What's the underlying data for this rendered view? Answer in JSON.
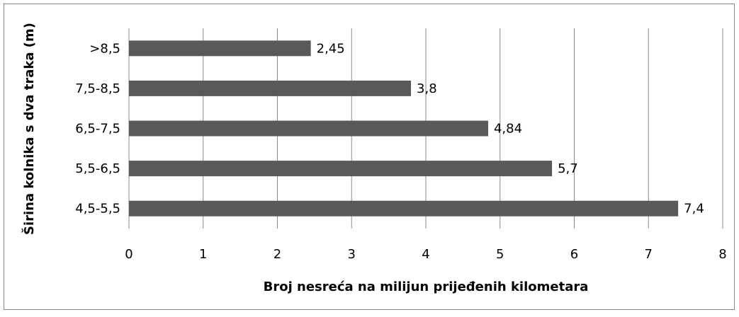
{
  "chart_data": {
    "type": "barh",
    "xlabel": "Broj nesreća na milijun prijeđenih kilometara",
    "ylabel": "Širina kolnika s dva traka (m)",
    "categories": [
      "4,5-5,5",
      "5,5-6,5",
      "6,5-7,5",
      "7,5-8,5",
      ">8,5"
    ],
    "values": [
      7.4,
      5.7,
      4.84,
      3.8,
      2.45
    ],
    "value_labels": [
      "7,4",
      "5,7",
      "4,84",
      "3,8",
      "2,45"
    ],
    "color": "#595959",
    "xlim": [
      0,
      8
    ],
    "xticks": [
      0,
      1,
      2,
      3,
      4,
      5,
      6,
      7,
      8
    ],
    "grid": true
  }
}
